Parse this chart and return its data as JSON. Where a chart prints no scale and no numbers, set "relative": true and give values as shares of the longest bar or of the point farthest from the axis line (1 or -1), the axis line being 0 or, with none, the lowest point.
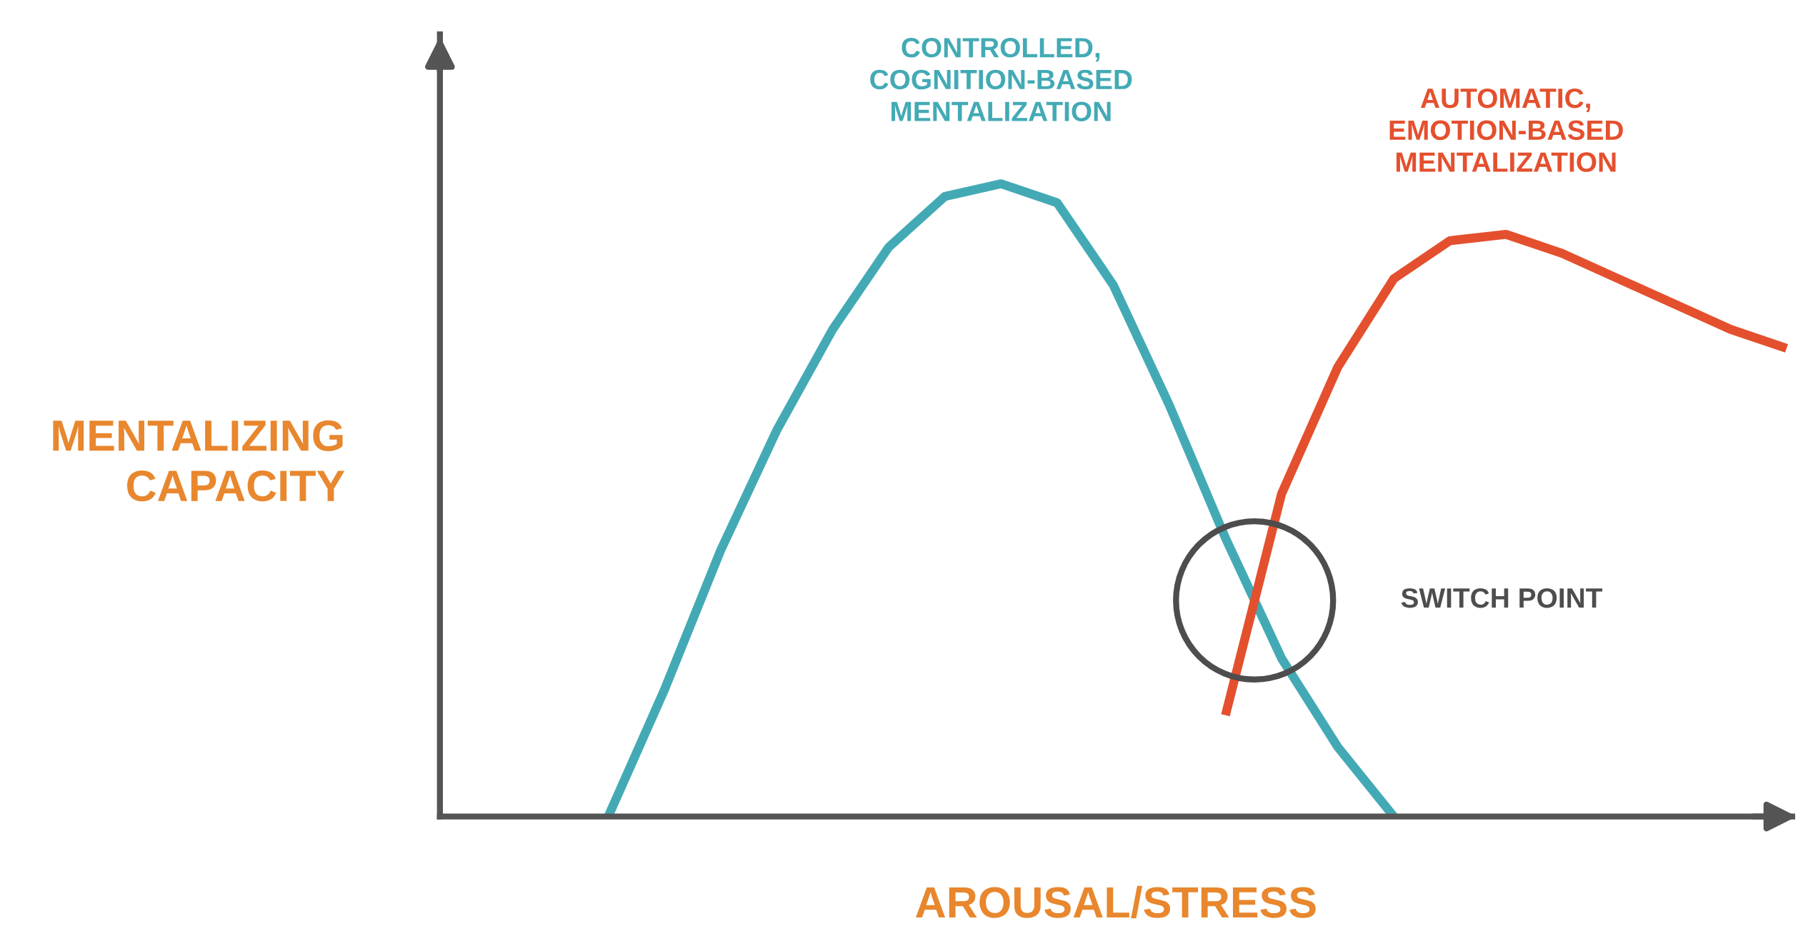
{
  "chart_data": {
    "type": "line",
    "relative": true,
    "xlabel": "AROUSAL/STRESS",
    "ylabel": "MENTALIZING\nCAPACITY",
    "categories": [
      null,
      null,
      null,
      null,
      null,
      null,
      null,
      null,
      null,
      null,
      null,
      null,
      null,
      null,
      null,
      null,
      null,
      null,
      null,
      null,
      null,
      null,
      null,
      null,
      null
    ],
    "series": [
      {
        "name": "CONTROLLED,\nCOGNITION-BASED\nMENTALIZATION",
        "color": "#43aab5",
        "values": [
          null,
          null,
          null,
          0,
          0.2,
          0.42,
          0.61,
          0.77,
          0.9,
          0.98,
          1.0,
          0.97,
          0.84,
          0.65,
          0.44,
          0.25,
          0.11,
          0,
          null,
          null,
          null,
          null,
          null,
          null,
          null
        ]
      },
      {
        "name": "AUTOMATIC,\nEMOTION-BASED\nMENTALIZATION",
        "color": "#e4502e",
        "values": [
          null,
          null,
          null,
          null,
          null,
          null,
          null,
          null,
          null,
          null,
          null,
          null,
          null,
          null,
          0.16,
          0.51,
          0.71,
          0.85,
          0.91,
          0.92,
          0.89,
          0.85,
          0.81,
          0.77,
          0.74
        ]
      }
    ],
    "annotations": [
      "SWITCH POINT"
    ]
  }
}
